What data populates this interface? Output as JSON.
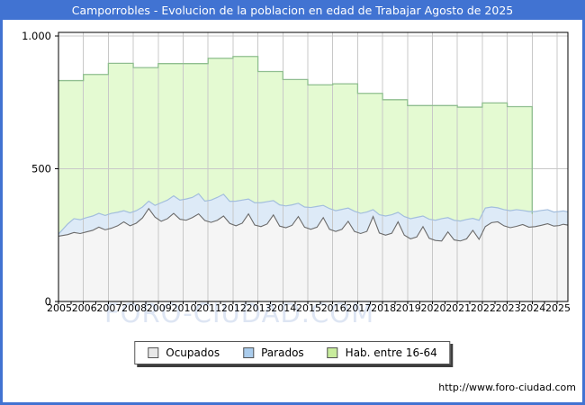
{
  "window": {
    "title": "Camporrobles - Evolucion de la poblacion en edad de Trabajar Agosto de 2025",
    "titlebar_color": "#4173d2",
    "border_color": "#4173d2",
    "footer_url": "http://www.foro-ciudad.com"
  },
  "watermark": {
    "text": "FORO-CIUDAD.COM",
    "color": "#dde5f3"
  },
  "legend": {
    "items": [
      {
        "label": "Ocupados",
        "swatch": "#e8e8e8",
        "swatch_border": "#555555"
      },
      {
        "label": "Parados",
        "swatch": "#aaccec",
        "swatch_border": "#555555"
      },
      {
        "label": "Hab. entre 16-64",
        "swatch": "#c8ec9c",
        "swatch_border": "#555555"
      }
    ]
  },
  "chart_data": {
    "type": "area",
    "title": "Camporrobles - Evolucion de la poblacion en edad de Trabajar Agosto de 2025",
    "xlabel": "",
    "ylabel": "",
    "grid": true,
    "legend_position": "bottom",
    "x_axis": {
      "years": [
        2005,
        2006,
        2007,
        2008,
        2009,
        2010,
        2011,
        2012,
        2013,
        2014,
        2015,
        2016,
        2017,
        2018,
        2019,
        2020,
        2021,
        2022,
        2023,
        2024,
        2025
      ],
      "range": [
        2005,
        2025.45
      ]
    },
    "y_axis": {
      "range": [
        0,
        1000
      ],
      "ticks": [
        {
          "value": 0,
          "label": "0"
        },
        {
          "value": 500,
          "label": "500"
        },
        {
          "value": 1000,
          "label": "1.000"
        }
      ],
      "gridline_values": [
        500,
        1000
      ]
    },
    "colors": {
      "gridline": "#c8c8c8",
      "frame": "#000000",
      "plot_bg": "#ffffff"
    },
    "series": [
      {
        "name": "Hab. entre 16-64",
        "render": "step-area",
        "fill": "#e4fad2",
        "line": "#8fbe8f",
        "note": "annual padron values; series ends with vertical drop at 2024",
        "years": [
          2005,
          2006,
          2007,
          2008,
          2009,
          2010,
          2011,
          2012,
          2013,
          2014,
          2015,
          2016,
          2017,
          2018,
          2019,
          2020,
          2021,
          2022,
          2023
        ],
        "values": [
          832,
          855,
          897,
          881,
          896,
          896,
          916,
          923,
          866,
          836,
          816,
          820,
          784,
          760,
          738,
          738,
          732,
          748,
          734
        ],
        "ends_at": 2024
      },
      {
        "name": "Parados",
        "render": "area-stacked-on-ocupados",
        "fill": "#ddeaf7",
        "line": "#a3bedd",
        "note": "top boundary of blue band = Ocupados + Parados",
        "x": [
          2005.0,
          2005.37,
          2005.62,
          2005.87,
          2006.12,
          2006.37,
          2006.62,
          2006.87,
          2007.12,
          2007.37,
          2007.62,
          2007.87,
          2008.12,
          2008.37,
          2008.62,
          2008.87,
          2009.12,
          2009.37,
          2009.62,
          2009.87,
          2010.12,
          2010.37,
          2010.62,
          2010.87,
          2011.12,
          2011.37,
          2011.62,
          2011.87,
          2012.12,
          2012.37,
          2012.62,
          2012.87,
          2013.12,
          2013.37,
          2013.62,
          2013.87,
          2014.12,
          2014.37,
          2014.62,
          2014.87,
          2015.12,
          2015.37,
          2015.62,
          2015.87,
          2016.12,
          2016.37,
          2016.62,
          2016.87,
          2017.12,
          2017.37,
          2017.62,
          2017.87,
          2018.12,
          2018.37,
          2018.62,
          2018.87,
          2019.12,
          2019.37,
          2019.62,
          2019.87,
          2020.12,
          2020.37,
          2020.62,
          2020.87,
          2021.12,
          2021.37,
          2021.62,
          2021.87,
          2022.12,
          2022.37,
          2022.62,
          2022.87,
          2023.12,
          2023.37,
          2023.62,
          2023.87,
          2024.12,
          2024.37,
          2024.62,
          2024.87,
          2025.08,
          2025.25,
          2025.42
        ],
        "values": [
          8,
          40,
          52,
          52,
          54,
          54,
          52,
          54,
          56,
          51,
          42,
          49,
          47,
          41,
          28,
          44,
          70,
          70,
          66,
          72,
          80,
          76,
          76,
          73,
          84,
          86,
          82,
          83,
          93,
          87,
          56,
          84,
          90,
          84,
          54,
          80,
          82,
          77,
          50,
          76,
          82,
          78,
          46,
          78,
          78,
          75,
          50,
          76,
          76,
          73,
          26,
          69,
          72,
          70,
          36,
          70,
          76,
          74,
          40,
          72,
          76,
          84,
          54,
          74,
          75,
          73,
          45,
          72,
          70,
          59,
          53,
          61,
          64,
          63,
          53,
          59,
          57,
          56,
          53,
          53,
          53,
          50,
          50
        ]
      },
      {
        "name": "Ocupados",
        "render": "area",
        "fill": "#f5f5f5",
        "line": "#6b6b6b",
        "x": [
          2005.0,
          2005.37,
          2005.62,
          2005.87,
          2006.12,
          2006.37,
          2006.62,
          2006.87,
          2007.12,
          2007.37,
          2007.62,
          2007.87,
          2008.12,
          2008.37,
          2008.62,
          2008.87,
          2009.12,
          2009.37,
          2009.62,
          2009.87,
          2010.12,
          2010.37,
          2010.62,
          2010.87,
          2011.12,
          2011.37,
          2011.62,
          2011.87,
          2012.12,
          2012.37,
          2012.62,
          2012.87,
          2013.12,
          2013.37,
          2013.62,
          2013.87,
          2014.12,
          2014.37,
          2014.62,
          2014.87,
          2015.12,
          2015.37,
          2015.62,
          2015.87,
          2016.12,
          2016.37,
          2016.62,
          2016.87,
          2017.12,
          2017.37,
          2017.62,
          2017.87,
          2018.12,
          2018.37,
          2018.62,
          2018.87,
          2019.12,
          2019.37,
          2019.62,
          2019.87,
          2020.12,
          2020.37,
          2020.62,
          2020.87,
          2021.12,
          2021.37,
          2021.62,
          2021.87,
          2022.12,
          2022.37,
          2022.62,
          2022.87,
          2023.12,
          2023.37,
          2023.62,
          2023.87,
          2024.12,
          2024.37,
          2024.62,
          2024.87,
          2025.08,
          2025.25,
          2025.42
        ],
        "values": [
          246,
          252,
          260,
          256,
          262,
          268,
          280,
          270,
          276,
          285,
          300,
          285,
          295,
          315,
          350,
          318,
          302,
          312,
          332,
          310,
          306,
          316,
          330,
          305,
          298,
          306,
          322,
          294,
          285,
          295,
          330,
          288,
          282,
          292,
          326,
          284,
          278,
          287,
          320,
          280,
          272,
          280,
          316,
          272,
          264,
          272,
          302,
          264,
          256,
          264,
          320,
          258,
          250,
          257,
          300,
          250,
          236,
          243,
          282,
          238,
          230,
          228,
          262,
          232,
          228,
          236,
          268,
          234,
          282,
          297,
          300,
          285,
          278,
          283,
          290,
          280,
          282,
          287,
          293,
          284,
          286,
          291,
          288
        ]
      }
    ]
  }
}
